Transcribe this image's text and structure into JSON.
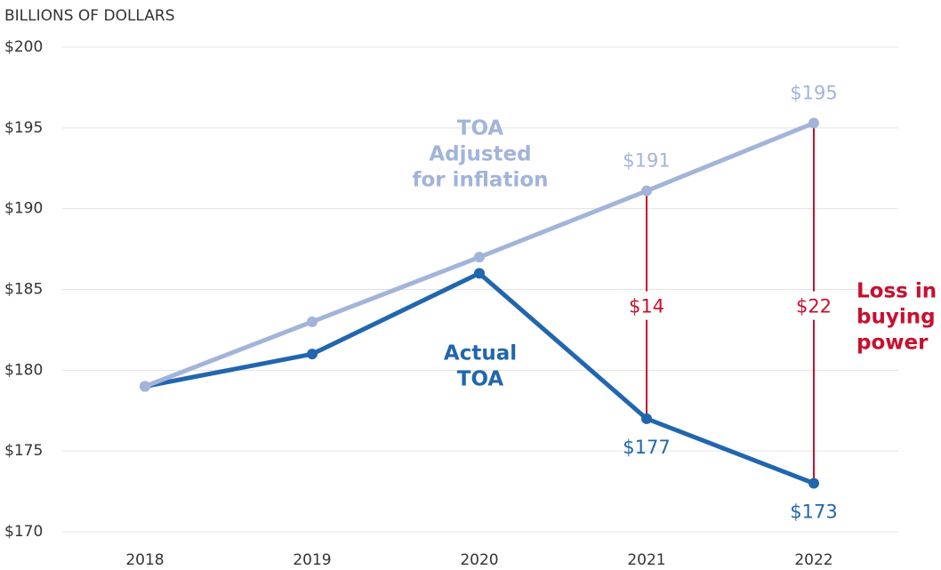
{
  "chart_data": {
    "type": "line",
    "y_axis_label": "BILLIONS OF DOLLARS",
    "categories": [
      "2018",
      "2019",
      "2020",
      "2021",
      "2022"
    ],
    "series": [
      {
        "name": "Actual TOA",
        "label_lines": [
          "Actual",
          "TOA"
        ],
        "color": "#2166ae",
        "values": [
          179,
          181,
          186,
          177,
          173
        ],
        "value_labels": [
          null,
          null,
          null,
          "$177",
          "$173"
        ]
      },
      {
        "name": "TOA Adjusted for inflation",
        "label_lines": [
          "TOA",
          "Adjusted",
          "for inflation"
        ],
        "color": "#a3b4da",
        "values": [
          179,
          183,
          187,
          191.1,
          195.3
        ],
        "value_labels": [
          null,
          null,
          null,
          "$191",
          "$195"
        ]
      }
    ],
    "gaps": [
      {
        "category": "2021",
        "value": 14,
        "label": "$14"
      },
      {
        "category": "2022",
        "value": 22,
        "label": "$22"
      }
    ],
    "gap_annotation_lines": [
      "Loss in",
      "buying",
      "power"
    ],
    "gap_color": "#c8102e",
    "ylim": [
      170,
      200
    ],
    "yticks": [
      {
        "value": 170,
        "label": "$170"
      },
      {
        "value": 175,
        "label": "$175"
      },
      {
        "value": 180,
        "label": "$180"
      },
      {
        "value": 185,
        "label": "$185"
      },
      {
        "value": 190,
        "label": "$190"
      },
      {
        "value": 195,
        "label": "$195"
      },
      {
        "value": 200,
        "label": "$200"
      }
    ],
    "grid": true
  }
}
